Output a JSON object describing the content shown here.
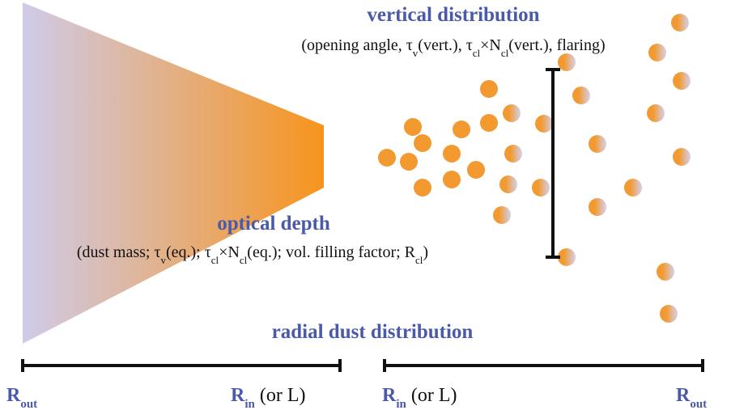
{
  "vertical_distribution": {
    "title": "vertical distribution",
    "detail": [
      "(opening angle, τ",
      "v",
      "(vert.), τ",
      "cl",
      "×N",
      "cl",
      "(vert.), flaring)"
    ]
  },
  "optical_depth": {
    "title": "optical depth",
    "detail": [
      "(dust mass; τ",
      "v",
      "(eq.); τ",
      "cl",
      "×N",
      "cl",
      "(eq.); vol. filling factor; R",
      "cl",
      ")"
    ]
  },
  "radial_distribution": {
    "title": "radial dust distribution"
  },
  "axis_labels": {
    "left_outer": [
      "R",
      "out"
    ],
    "left_inner": [
      "R",
      "in",
      "  (or L)"
    ],
    "right_inner": [
      "R",
      "in",
      " (or L)"
    ],
    "right_outer": [
      "R",
      "out"
    ]
  }
}
